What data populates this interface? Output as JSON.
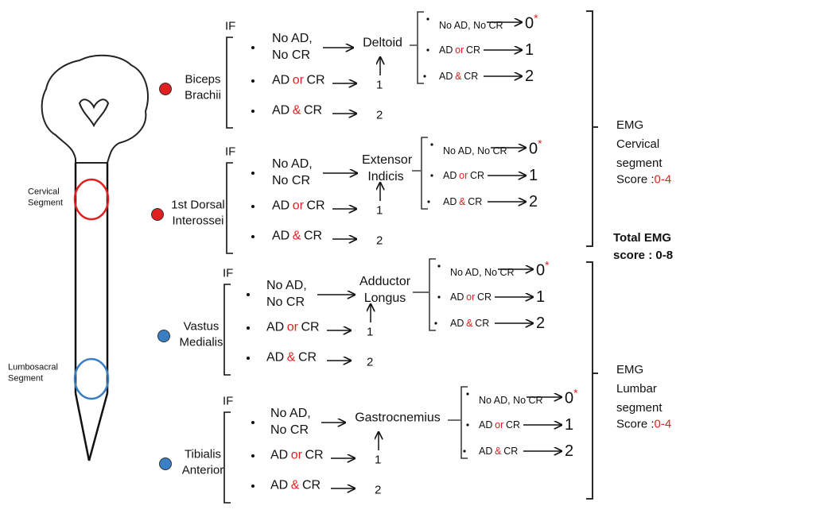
{
  "spine": {
    "cervical_label": "Cervical Segment",
    "lumbosacral_label": "Lumbosacral Segment"
  },
  "blocks": [
    {
      "if": "IF",
      "muscle": "Biceps Brachii",
      "target": "Deltoid",
      "conditions": [
        {
          "text": "No AD, No CR"
        },
        {
          "pre": "AD",
          "conj": "or",
          "post": "CR",
          "score": "1"
        },
        {
          "pre": "AD",
          "conj": "&",
          "post": "CR",
          "score": "2"
        }
      ],
      "sub": [
        {
          "text": "No AD, No CR",
          "score": "0",
          "mark": "*"
        },
        {
          "pre": "AD",
          "conj": "or",
          "post": "CR",
          "score": "1"
        },
        {
          "pre": "AD",
          "conj": "&",
          "post": "CR",
          "score": "2"
        }
      ]
    },
    {
      "if": "IF",
      "muscle": "1st Dorsal Interossei",
      "target": "Extensor Indicis",
      "conditions": [
        {
          "text": "No AD, No CR"
        },
        {
          "pre": "AD",
          "conj": "or",
          "post": "CR",
          "score": "1"
        },
        {
          "pre": "AD",
          "conj": "&",
          "post": "CR",
          "score": "2"
        }
      ],
      "sub": [
        {
          "text": "No AD, No CR",
          "score": "0",
          "mark": "*"
        },
        {
          "pre": "AD",
          "conj": "or",
          "post": "CR",
          "score": "1"
        },
        {
          "pre": "AD",
          "conj": "&",
          "post": "CR",
          "score": "2"
        }
      ]
    },
    {
      "if": "IF",
      "muscle": "Vastus Medialis",
      "target": "Adductor Longus",
      "conditions": [
        {
          "text": "No AD, No CR"
        },
        {
          "pre": "AD",
          "conj": "or",
          "post": "CR",
          "score": "1"
        },
        {
          "pre": "AD",
          "conj": "&",
          "post": "CR",
          "score": "2"
        }
      ],
      "sub": [
        {
          "text": "No AD, No CR",
          "score": "0",
          "mark": "*"
        },
        {
          "pre": "AD",
          "conj": "or",
          "post": "CR",
          "score": "1"
        },
        {
          "pre": "AD",
          "conj": "&",
          "post": "CR",
          "score": "2"
        }
      ]
    },
    {
      "if": "IF",
      "muscle": "Tibialis Anterior",
      "target": "Gastrocnemius",
      "conditions": [
        {
          "text": "No AD, No CR"
        },
        {
          "pre": "AD",
          "conj": "or",
          "post": "CR",
          "score": "1"
        },
        {
          "pre": "AD",
          "conj": "&",
          "post": "CR",
          "score": "2"
        }
      ],
      "sub": [
        {
          "text": "No AD, No CR",
          "score": "0",
          "mark": "*"
        },
        {
          "pre": "AD",
          "conj": "or",
          "post": "CR",
          "score": "1"
        },
        {
          "pre": "AD",
          "conj": "&",
          "post": "CR",
          "score": "2"
        }
      ]
    }
  ],
  "segments": [
    {
      "label": "EMG Cervical segment",
      "score_prefix": "Score :",
      "score_range": "0-4"
    },
    {
      "label": "EMG Lumbar segment",
      "score_prefix": "Score :",
      "score_range": "0-4"
    }
  ],
  "total": "Total EMG score : 0-8"
}
